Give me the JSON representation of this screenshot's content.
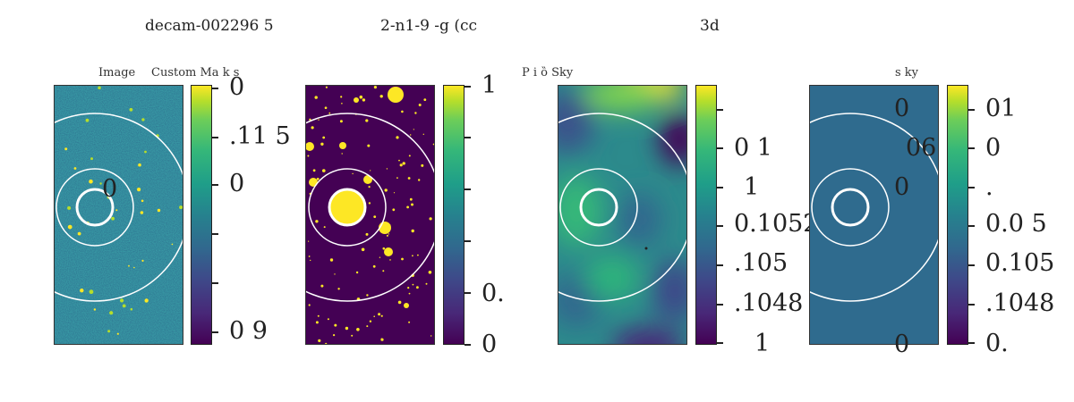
{
  "figure": {
    "suptitle_parts": [
      "decam-002296   5",
      "2-n1-9 -g (cc",
      "3d"
    ]
  },
  "colors": {
    "panel_border": "#333333",
    "rings": "#ffffff",
    "uniform_sky": "#2f6b8e",
    "mask_background": "#440154",
    "mask_foreground": "#fde725"
  },
  "chart_data": [
    {
      "type": "heatmap",
      "title": "Image",
      "colormap": "viridis",
      "colorbar_ticks": [
        "0",
        ".11   5",
        "0",
        "",
        "",
        "0   9"
      ],
      "overlay_labels": [
        "0"
      ],
      "rings": [
        "inner-thick",
        "middle",
        "outer"
      ]
    },
    {
      "type": "heatmap",
      "title": "Custom Ma  k  s",
      "colormap": "viridis",
      "colorbar_ticks": [
        "1",
        "",
        "",
        "",
        "0.",
        "0"
      ],
      "rings": [
        "inner-thick",
        "middle",
        "outer"
      ]
    },
    {
      "type": "heatmap",
      "title": "P           i ȍ Sky",
      "colormap": "viridis",
      "colorbar_ticks": [
        "",
        "0   1",
        "1",
        "0.1052",
        ".105",
        ".1048",
        "1"
      ],
      "rings": [
        "inner-thick",
        "middle",
        "outer"
      ]
    },
    {
      "type": "heatmap",
      "title": "s     ky",
      "colormap": "viridis",
      "colorbar_ticks": [
        "01",
        "0",
        ".",
        "0.0   5",
        "0.105",
        ".1048",
        "0."
      ],
      "overlay_labels": [
        "0",
        "06",
        "0",
        "0"
      ],
      "rings": [
        "inner-thick",
        "middle",
        "outer"
      ]
    }
  ]
}
